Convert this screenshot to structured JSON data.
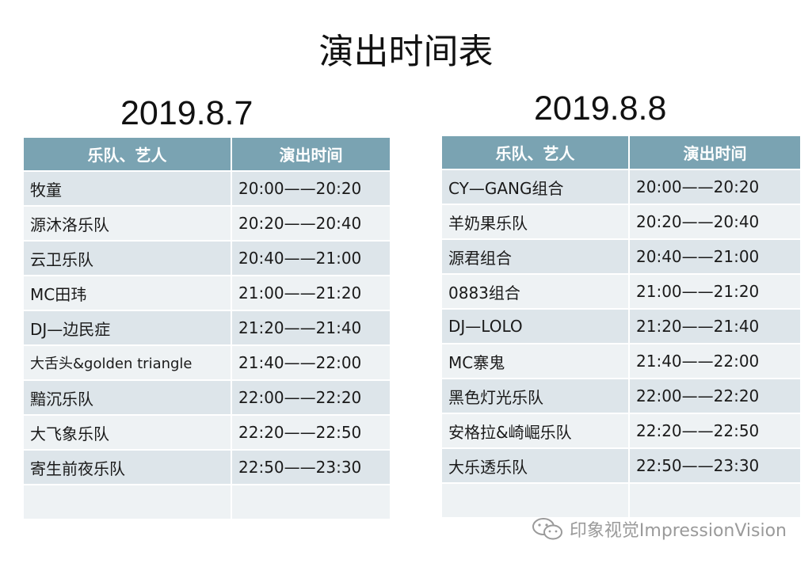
{
  "title": "演出时间表",
  "day1": {
    "date": "2019.8.7",
    "headers": [
      "乐队、艺人",
      "演出时间"
    ],
    "rows": [
      {
        "band": "牧童",
        "time": "20:00——20:20"
      },
      {
        "band": "源沐洛乐队",
        "time": "20:20——20:40"
      },
      {
        "band": "云卫乐队",
        "time": "20:40——21:00"
      },
      {
        "band": "MC田玮",
        "time": "21:00——21:20"
      },
      {
        "band": "DJ—边民症",
        "time": "21:20——21:40"
      },
      {
        "band": "大舌头&golden triangle",
        "time": "21:40——22:00"
      },
      {
        "band": "黯沉乐队",
        "time": "22:00——22:20"
      },
      {
        "band": "大飞象乐队",
        "time": "22:20——22:50"
      },
      {
        "band": "寄生前夜乐队",
        "time": "22:50——23:30"
      },
      {
        "band": "",
        "time": ""
      }
    ]
  },
  "day2": {
    "date": "2019.8.8",
    "headers": [
      "乐队、艺人",
      "演出时间"
    ],
    "rows": [
      {
        "band": "CY—GANG组合",
        "time": "20:00——20:20"
      },
      {
        "band": "羊奶果乐队",
        "time": "20:20——20:40"
      },
      {
        "band": "源君组合",
        "time": "20:40——21:00"
      },
      {
        "band": "0883组合",
        "time": "21:00——21:20"
      },
      {
        "band": "DJ—LOLO",
        "time": "21:20——21:40"
      },
      {
        "band": "MC寨鬼",
        "time": "21:40——22:00"
      },
      {
        "band": "黑色灯光乐队",
        "time": "22:00——22:20"
      },
      {
        "band": "安格拉&崎崛乐队",
        "time": "22:20——22:50"
      },
      {
        "band": "大乐透乐队",
        "time": "22:50——23:30"
      },
      {
        "band": "",
        "time": ""
      }
    ]
  },
  "watermark": {
    "text": "印象视觉ImpressionVision",
    "icon": "wechat-icon",
    "color": "#9a9a9a"
  },
  "colors": {
    "header_bg": "#7aa3b2",
    "row_odd": "#dde5ea",
    "row_even": "#eef2f4"
  }
}
